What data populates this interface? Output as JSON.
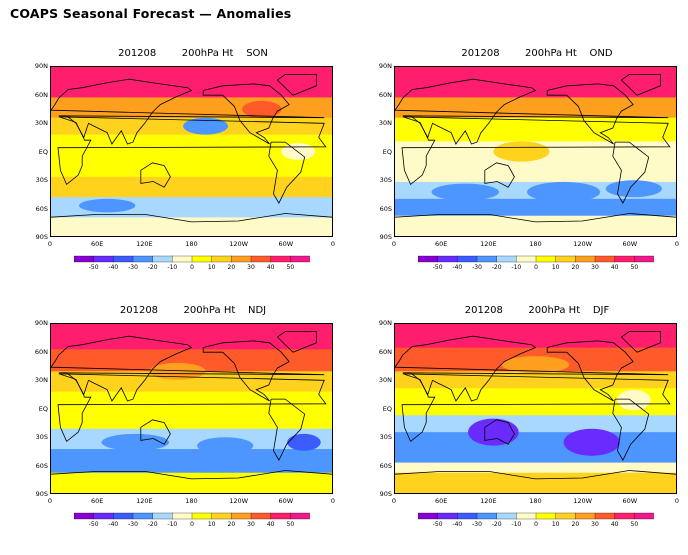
{
  "page": {
    "title": "COAPS Seasonal Forecast — Anomalies"
  },
  "panels": [
    {
      "init": "201208",
      "field": "200hPa Ht",
      "season": "SON"
    },
    {
      "init": "201208",
      "field": "200hPa Ht",
      "season": "OND"
    },
    {
      "init": "201208",
      "field": "200hPa Ht",
      "season": "NDJ"
    },
    {
      "init": "201208",
      "field": "200hPa Ht",
      "season": "DJF"
    }
  ],
  "axes": {
    "y_labels": [
      "90N",
      "60N",
      "30N",
      "EQ",
      "30S",
      "60S",
      "90S"
    ],
    "x_labels": [
      "0",
      "60E",
      "120E",
      "180",
      "120W",
      "60W",
      "0"
    ]
  },
  "colorbar": {
    "labels": [
      "-50",
      "-40",
      "-30",
      "-20",
      "-10",
      "0",
      "10",
      "20",
      "30",
      "40",
      "50"
    ],
    "colors": [
      "#8a00d4",
      "#6a2bff",
      "#3d5cff",
      "#4d95ff",
      "#a9d8ff",
      "#fffbc8",
      "#ffff00",
      "#ffd21e",
      "#ff9f1e",
      "#ff5a2a",
      "#ff1e6e",
      "#ee1a8a"
    ]
  }
}
